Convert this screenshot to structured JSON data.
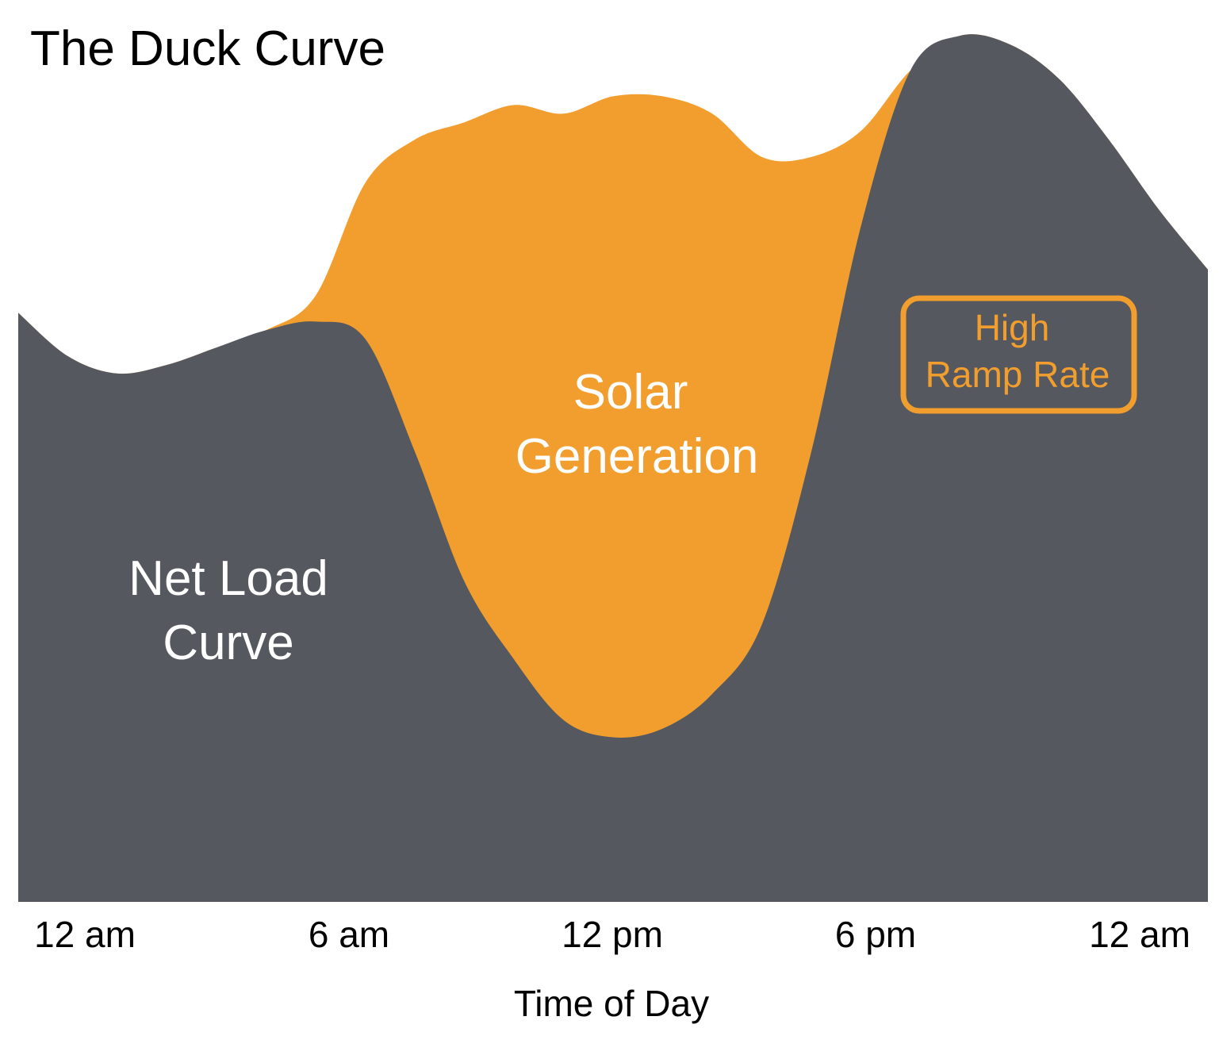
{
  "chart_data": {
    "type": "area",
    "title": "The Duck Curve",
    "xlabel": "Time of Day",
    "ylabel": "",
    "x_ticks": [
      "12 am",
      "6 am",
      "12 pm",
      "6 pm",
      "12 am"
    ],
    "xlim": [
      0,
      24
    ],
    "ylim": [
      0,
      100
    ],
    "grid": false,
    "legend": "none",
    "x": [
      0,
      1,
      2,
      3,
      4,
      5,
      6,
      7,
      8,
      9,
      10,
      11,
      12,
      13,
      14,
      15,
      16,
      17,
      18,
      19,
      20,
      21,
      22,
      23,
      24
    ],
    "series": [
      {
        "name": "Net Load Curve",
        "color": "#55585e",
        "values": [
          68,
          63,
          61,
          62,
          64,
          66,
          67,
          65,
          52,
          37,
          28,
          21,
          19,
          20,
          24,
          32,
          52,
          78,
          96,
          100,
          99,
          95,
          88,
          80,
          73
        ]
      },
      {
        "name": "Solar Generation",
        "color": "#f29e2e",
        "values": [
          0,
          0,
          0,
          0,
          0,
          0,
          3,
          18,
          36,
          53,
          64,
          70,
          74,
          73,
          67,
          54,
          34,
          11,
          0,
          0,
          0,
          0,
          0,
          0,
          0
        ]
      }
    ],
    "annotations": {
      "net_load_label": [
        "Net Load",
        "Curve"
      ],
      "solar_label": [
        "Solar",
        "Generation"
      ],
      "ramp_label": [
        "High",
        "Ramp Rate"
      ]
    }
  },
  "colors": {
    "net_load": "#55585e",
    "solar": "#f29e2e",
    "ramp_box": "#f29e2e",
    "background": "#ffffff"
  }
}
